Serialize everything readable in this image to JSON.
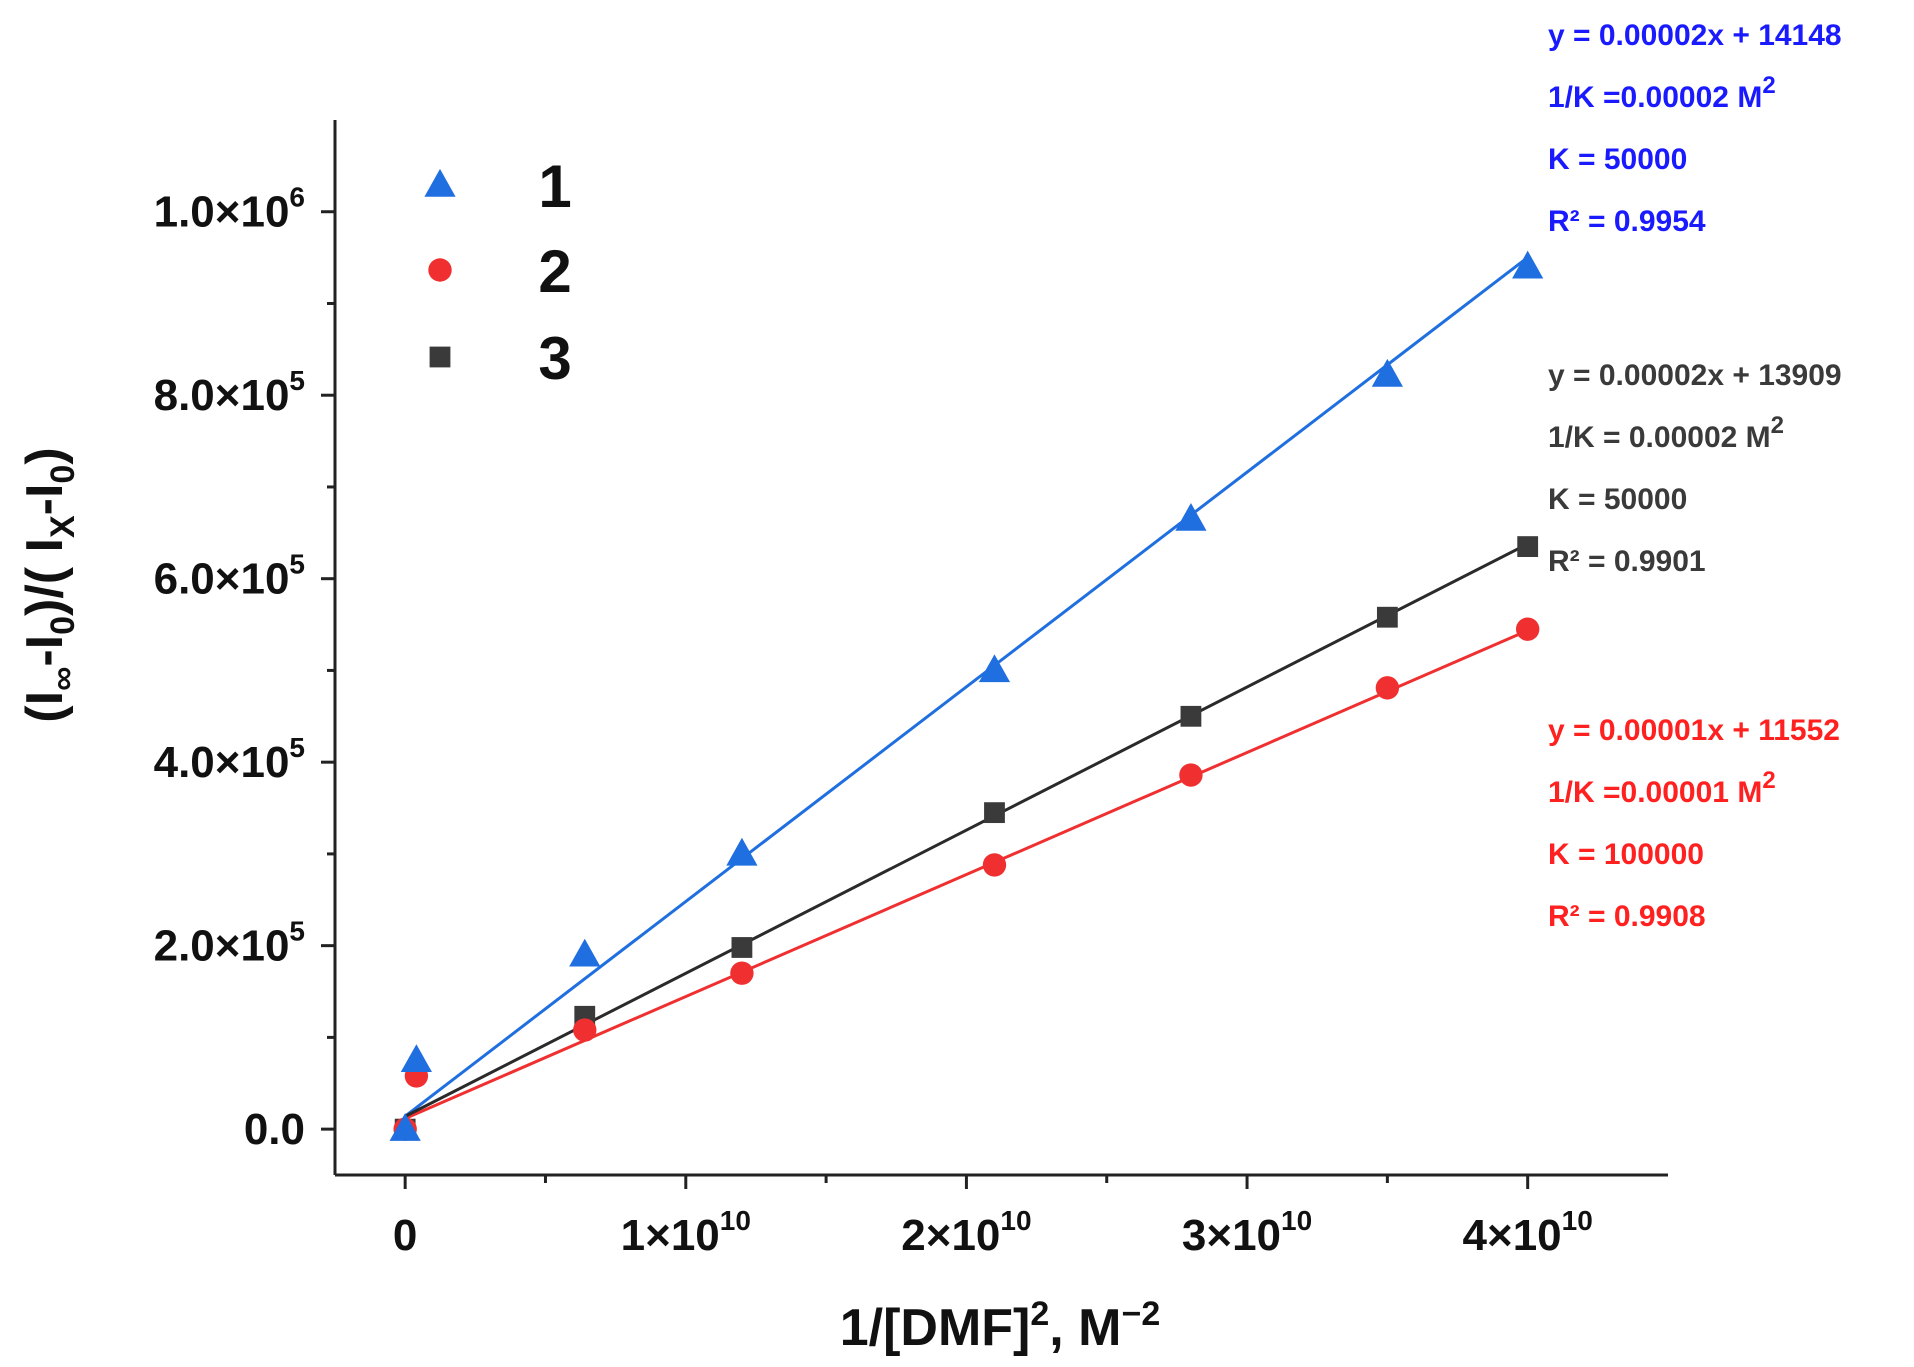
{
  "chart_data": {
    "type": "scatter",
    "xlabel": "1/[DMF]², M⁻²",
    "ylabel": "(I∞-I0)/( Ix-I0)",
    "xlim": [
      -2500000000.0,
      45000000000.0
    ],
    "ylim": [
      -50000.0,
      1100000.0
    ],
    "x_ticks": [
      0,
      10000000000.0,
      20000000000.0,
      30000000000.0,
      40000000000.0
    ],
    "x_tick_labels": [
      {
        "mant": "0",
        "exp": ""
      },
      {
        "mant": "1×10",
        "exp": "10"
      },
      {
        "mant": "2×10",
        "exp": "10"
      },
      {
        "mant": "3×10",
        "exp": "10"
      },
      {
        "mant": "4×10",
        "exp": "10"
      }
    ],
    "y_ticks": [
      0,
      200000,
      400000,
      600000,
      800000,
      1000000
    ],
    "y_tick_labels": [
      {
        "mant": "0.0",
        "exp": ""
      },
      {
        "mant": "2.0×10",
        "exp": "5"
      },
      {
        "mant": "4.0×10",
        "exp": "5"
      },
      {
        "mant": "6.0×10",
        "exp": "5"
      },
      {
        "mant": "8.0×10",
        "exp": "5"
      },
      {
        "mant": "1.0×10",
        "exp": "6"
      }
    ],
    "legend_position": "top-left",
    "series": [
      {
        "name": "1",
        "marker": "triangle",
        "color": "#1f6fe0",
        "fit_color": "#1f6fe0",
        "annotation_color": "#1a1aff",
        "x": [
          0,
          400000000,
          6400000000,
          12000000000,
          21000000000,
          28000000000,
          35000000000,
          40000000000
        ],
        "y": [
          0,
          75000,
          190000,
          300000,
          500000,
          665000,
          822000,
          940000
        ],
        "fit": {
          "slope": 2.34e-05,
          "intercept": 14148,
          "x_range": [
            0,
            40000000000
          ]
        },
        "annotations": {
          "equation": "y = 0.00002x + 14148",
          "inv_k": "1/K =0.00002 M",
          "inv_k_sup": "2",
          "k": "K = 50000",
          "r2": "R² = 0.9954"
        }
      },
      {
        "name": "2",
        "marker": "circle",
        "color": "#f03030",
        "fit_color": "#f03030",
        "annotation_color": "#ff2020",
        "x": [
          0,
          400000000,
          6400000000,
          12000000000,
          21000000000,
          28000000000,
          35000000000,
          40000000000
        ],
        "y": [
          0,
          58000,
          108000,
          170000,
          288000,
          386000,
          481000,
          545000
        ],
        "fit": {
          "slope": 1.33e-05,
          "intercept": 11552,
          "x_range": [
            0,
            40000000000
          ]
        },
        "annotations": {
          "equation": "y = 0.00001x + 11552",
          "inv_k": "1/K =0.00001 M",
          "inv_k_sup": "2",
          "k": "K = 100000",
          "r2": "R² = 0.9908"
        }
      },
      {
        "name": "3",
        "marker": "square",
        "color": "#3a3a3a",
        "fit_color": "#2a2a2a",
        "annotation_color": "#3a3a3a",
        "x": [
          0,
          6400000000,
          12000000000,
          21000000000,
          28000000000,
          35000000000,
          40000000000
        ],
        "y": [
          0,
          123000,
          198000,
          345000,
          450000,
          558000,
          635000
        ],
        "fit": {
          "slope": 1.56e-05,
          "intercept": 13909,
          "x_range": [
            0,
            40000000000
          ]
        },
        "annotations": {
          "equation": "y = 0.00002x + 13909",
          "inv_k": "1/K = 0.00002 M",
          "inv_k_sup": "2",
          "k": "K = 50000",
          "r2": "R² = 0.9901"
        }
      }
    ]
  }
}
